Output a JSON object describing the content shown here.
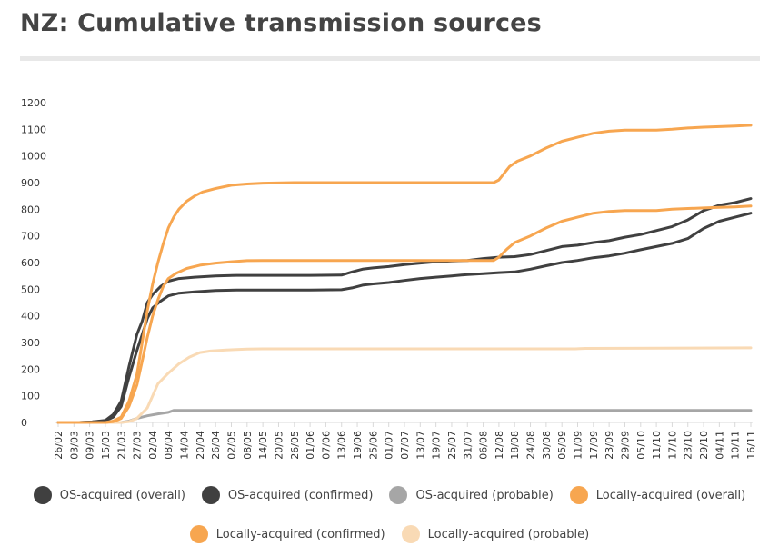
{
  "title": "NZ: Cumulative transmission sources",
  "chart_data": {
    "type": "line",
    "title": "NZ: Cumulative transmission sources",
    "xlabel": "",
    "ylabel": "",
    "ylim": [
      0,
      1200
    ],
    "yticks": [
      0,
      100,
      200,
      300,
      400,
      500,
      600,
      700,
      800,
      900,
      1000,
      1100,
      1200
    ],
    "grid": false,
    "legend_position": "bottom",
    "start_date": "26/02",
    "end_date": "16/11",
    "x_tick_labels": [
      "26/02",
      "03/03",
      "09/03",
      "15/03",
      "21/03",
      "27/03",
      "02/04",
      "08/04",
      "14/04",
      "20/04",
      "26/04",
      "02/05",
      "08/05",
      "14/05",
      "20/05",
      "26/05",
      "01/06",
      "07/06",
      "13/06",
      "19/06",
      "25/06",
      "01/07",
      "07/07",
      "13/07",
      "19/07",
      "25/07",
      "31/07",
      "06/08",
      "12/08",
      "18/08",
      "24/08",
      "30/08",
      "05/09",
      "11/09",
      "17/09",
      "23/09",
      "29/09",
      "05/10",
      "11/10",
      "17/10",
      "23/10",
      "29/10",
      "04/11",
      "10/11",
      "16/11"
    ],
    "series": [
      {
        "name": "OS-acquired (overall)",
        "color": "#404040",
        "points": [
          [
            "26/02",
            0
          ],
          [
            "05/03",
            0
          ],
          [
            "10/03",
            2
          ],
          [
            "15/03",
            8
          ],
          [
            "18/03",
            30
          ],
          [
            "21/03",
            80
          ],
          [
            "24/03",
            210
          ],
          [
            "27/03",
            330
          ],
          [
            "29/03",
            380
          ],
          [
            "31/03",
            450
          ],
          [
            "02/04",
            480
          ],
          [
            "05/04",
            510
          ],
          [
            "08/04",
            530
          ],
          [
            "12/04",
            540
          ],
          [
            "18/04",
            545
          ],
          [
            "26/04",
            550
          ],
          [
            "04/05",
            552
          ],
          [
            "01/06",
            552
          ],
          [
            "13/06",
            553
          ],
          [
            "17/06",
            565
          ],
          [
            "21/06",
            575
          ],
          [
            "25/06",
            580
          ],
          [
            "01/07",
            585
          ],
          [
            "07/07",
            592
          ],
          [
            "13/07",
            598
          ],
          [
            "19/07",
            603
          ],
          [
            "25/07",
            606
          ],
          [
            "31/07",
            608
          ],
          [
            "06/08",
            615
          ],
          [
            "12/08",
            620
          ],
          [
            "18/08",
            622
          ],
          [
            "24/08",
            630
          ],
          [
            "30/08",
            645
          ],
          [
            "05/09",
            660
          ],
          [
            "11/09",
            665
          ],
          [
            "17/09",
            675
          ],
          [
            "23/09",
            682
          ],
          [
            "29/09",
            695
          ],
          [
            "05/10",
            705
          ],
          [
            "11/10",
            720
          ],
          [
            "17/10",
            735
          ],
          [
            "23/10",
            760
          ],
          [
            "29/10",
            795
          ],
          [
            "04/11",
            815
          ],
          [
            "10/11",
            825
          ],
          [
            "16/11",
            840
          ]
        ]
      },
      {
        "name": "OS-acquired (confirmed)",
        "color": "#404040",
        "points": [
          [
            "26/02",
            0
          ],
          [
            "05/03",
            0
          ],
          [
            "10/03",
            2
          ],
          [
            "15/03",
            6
          ],
          [
            "18/03",
            20
          ],
          [
            "21/03",
            60
          ],
          [
            "24/03",
            170
          ],
          [
            "27/03",
            270
          ],
          [
            "29/03",
            330
          ],
          [
            "31/03",
            390
          ],
          [
            "02/04",
            430
          ],
          [
            "05/04",
            455
          ],
          [
            "08/04",
            475
          ],
          [
            "12/04",
            485
          ],
          [
            "18/04",
            490
          ],
          [
            "26/04",
            495
          ],
          [
            "04/05",
            497
          ],
          [
            "01/06",
            497
          ],
          [
            "13/06",
            498
          ],
          [
            "17/06",
            505
          ],
          [
            "21/06",
            515
          ],
          [
            "25/06",
            520
          ],
          [
            "01/07",
            525
          ],
          [
            "07/07",
            533
          ],
          [
            "13/07",
            540
          ],
          [
            "19/07",
            545
          ],
          [
            "25/07",
            550
          ],
          [
            "31/07",
            555
          ],
          [
            "06/08",
            558
          ],
          [
            "12/08",
            562
          ],
          [
            "18/08",
            565
          ],
          [
            "24/08",
            575
          ],
          [
            "30/08",
            588
          ],
          [
            "05/09",
            600
          ],
          [
            "11/09",
            608
          ],
          [
            "17/09",
            618
          ],
          [
            "23/09",
            625
          ],
          [
            "29/09",
            635
          ],
          [
            "05/10",
            648
          ],
          [
            "11/10",
            660
          ],
          [
            "17/10",
            672
          ],
          [
            "23/10",
            690
          ],
          [
            "29/10",
            728
          ],
          [
            "04/11",
            755
          ],
          [
            "10/11",
            770
          ],
          [
            "16/11",
            785
          ]
        ]
      },
      {
        "name": "OS-acquired (probable)",
        "color": "#a6a6a6",
        "points": [
          [
            "26/02",
            0
          ],
          [
            "21/03",
            0
          ],
          [
            "24/03",
            5
          ],
          [
            "27/03",
            15
          ],
          [
            "31/03",
            25
          ],
          [
            "04/04",
            32
          ],
          [
            "08/04",
            38
          ],
          [
            "10/04",
            45
          ],
          [
            "16/11",
            45
          ]
        ]
      },
      {
        "name": "Locally-acquired (overall)",
        "color": "#f7a650",
        "points": [
          [
            "26/02",
            0
          ],
          [
            "15/03",
            0
          ],
          [
            "18/03",
            5
          ],
          [
            "21/03",
            20
          ],
          [
            "24/03",
            80
          ],
          [
            "27/03",
            180
          ],
          [
            "29/03",
            300
          ],
          [
            "31/03",
            420
          ],
          [
            "02/04",
            520
          ],
          [
            "04/04",
            600
          ],
          [
            "06/04",
            670
          ],
          [
            "08/04",
            730
          ],
          [
            "10/04",
            770
          ],
          [
            "12/04",
            800
          ],
          [
            "15/04",
            830
          ],
          [
            "18/04",
            850
          ],
          [
            "21/04",
            865
          ],
          [
            "26/04",
            878
          ],
          [
            "02/05",
            890
          ],
          [
            "08/05",
            895
          ],
          [
            "14/05",
            898
          ],
          [
            "26/05",
            900
          ],
          [
            "10/08",
            900
          ],
          [
            "12/08",
            910
          ],
          [
            "14/08",
            935
          ],
          [
            "16/08",
            960
          ],
          [
            "19/08",
            980
          ],
          [
            "24/08",
            1000
          ],
          [
            "30/08",
            1030
          ],
          [
            "05/09",
            1055
          ],
          [
            "11/09",
            1070
          ],
          [
            "17/09",
            1085
          ],
          [
            "23/09",
            1093
          ],
          [
            "29/09",
            1097
          ],
          [
            "11/10",
            1097
          ],
          [
            "17/10",
            1100
          ],
          [
            "23/10",
            1105
          ],
          [
            "29/10",
            1108
          ],
          [
            "04/11",
            1110
          ],
          [
            "10/11",
            1112
          ],
          [
            "16/11",
            1115
          ]
        ]
      },
      {
        "name": "Locally-acquired (confirmed)",
        "color": "#f7a650",
        "points": [
          [
            "26/02",
            0
          ],
          [
            "15/03",
            0
          ],
          [
            "18/03",
            3
          ],
          [
            "21/03",
            15
          ],
          [
            "24/03",
            60
          ],
          [
            "27/03",
            140
          ],
          [
            "29/03",
            230
          ],
          [
            "31/03",
            320
          ],
          [
            "02/04",
            400
          ],
          [
            "04/04",
            460
          ],
          [
            "06/04",
            510
          ],
          [
            "08/04",
            540
          ],
          [
            "11/04",
            560
          ],
          [
            "15/04",
            578
          ],
          [
            "20/04",
            590
          ],
          [
            "26/04",
            598
          ],
          [
            "02/05",
            603
          ],
          [
            "08/05",
            607
          ],
          [
            "14/05",
            608
          ],
          [
            "10/08",
            608
          ],
          [
            "12/08",
            620
          ],
          [
            "15/08",
            650
          ],
          [
            "18/08",
            675
          ],
          [
            "24/08",
            700
          ],
          [
            "30/08",
            730
          ],
          [
            "05/09",
            755
          ],
          [
            "11/09",
            770
          ],
          [
            "17/09",
            785
          ],
          [
            "23/09",
            792
          ],
          [
            "29/09",
            795
          ],
          [
            "11/10",
            795
          ],
          [
            "17/10",
            800
          ],
          [
            "23/10",
            803
          ],
          [
            "29/10",
            805
          ],
          [
            "04/11",
            807
          ],
          [
            "10/11",
            809
          ],
          [
            "16/11",
            812
          ]
        ]
      },
      {
        "name": "Locally-acquired (probable)",
        "color": "#f9dab5",
        "points": [
          [
            "26/02",
            0
          ],
          [
            "21/03",
            0
          ],
          [
            "24/03",
            3
          ],
          [
            "27/03",
            15
          ],
          [
            "31/03",
            55
          ],
          [
            "02/04",
            100
          ],
          [
            "04/04",
            145
          ],
          [
            "08/04",
            185
          ],
          [
            "12/04",
            220
          ],
          [
            "16/04",
            245
          ],
          [
            "20/04",
            262
          ],
          [
            "24/04",
            268
          ],
          [
            "30/04",
            272
          ],
          [
            "08/05",
            275
          ],
          [
            "14/05",
            276
          ],
          [
            "10/09",
            276
          ],
          [
            "14/09",
            278
          ],
          [
            "16/11",
            280
          ]
        ]
      }
    ]
  },
  "legend": {
    "rows": [
      [
        {
          "label": "OS-acquired (overall)",
          "color": "#404040"
        },
        {
          "label": "OS-acquired (confirmed)",
          "color": "#404040"
        },
        {
          "label": "OS-acquired (probable)",
          "color": "#a6a6a6"
        },
        {
          "label": "Locally-acquired (overall)",
          "color": "#f7a650"
        }
      ],
      [
        {
          "label": "Locally-acquired (confirmed)",
          "color": "#f7a650"
        },
        {
          "label": "Locally-acquired (probable)",
          "color": "#f9dab5"
        }
      ]
    ]
  }
}
